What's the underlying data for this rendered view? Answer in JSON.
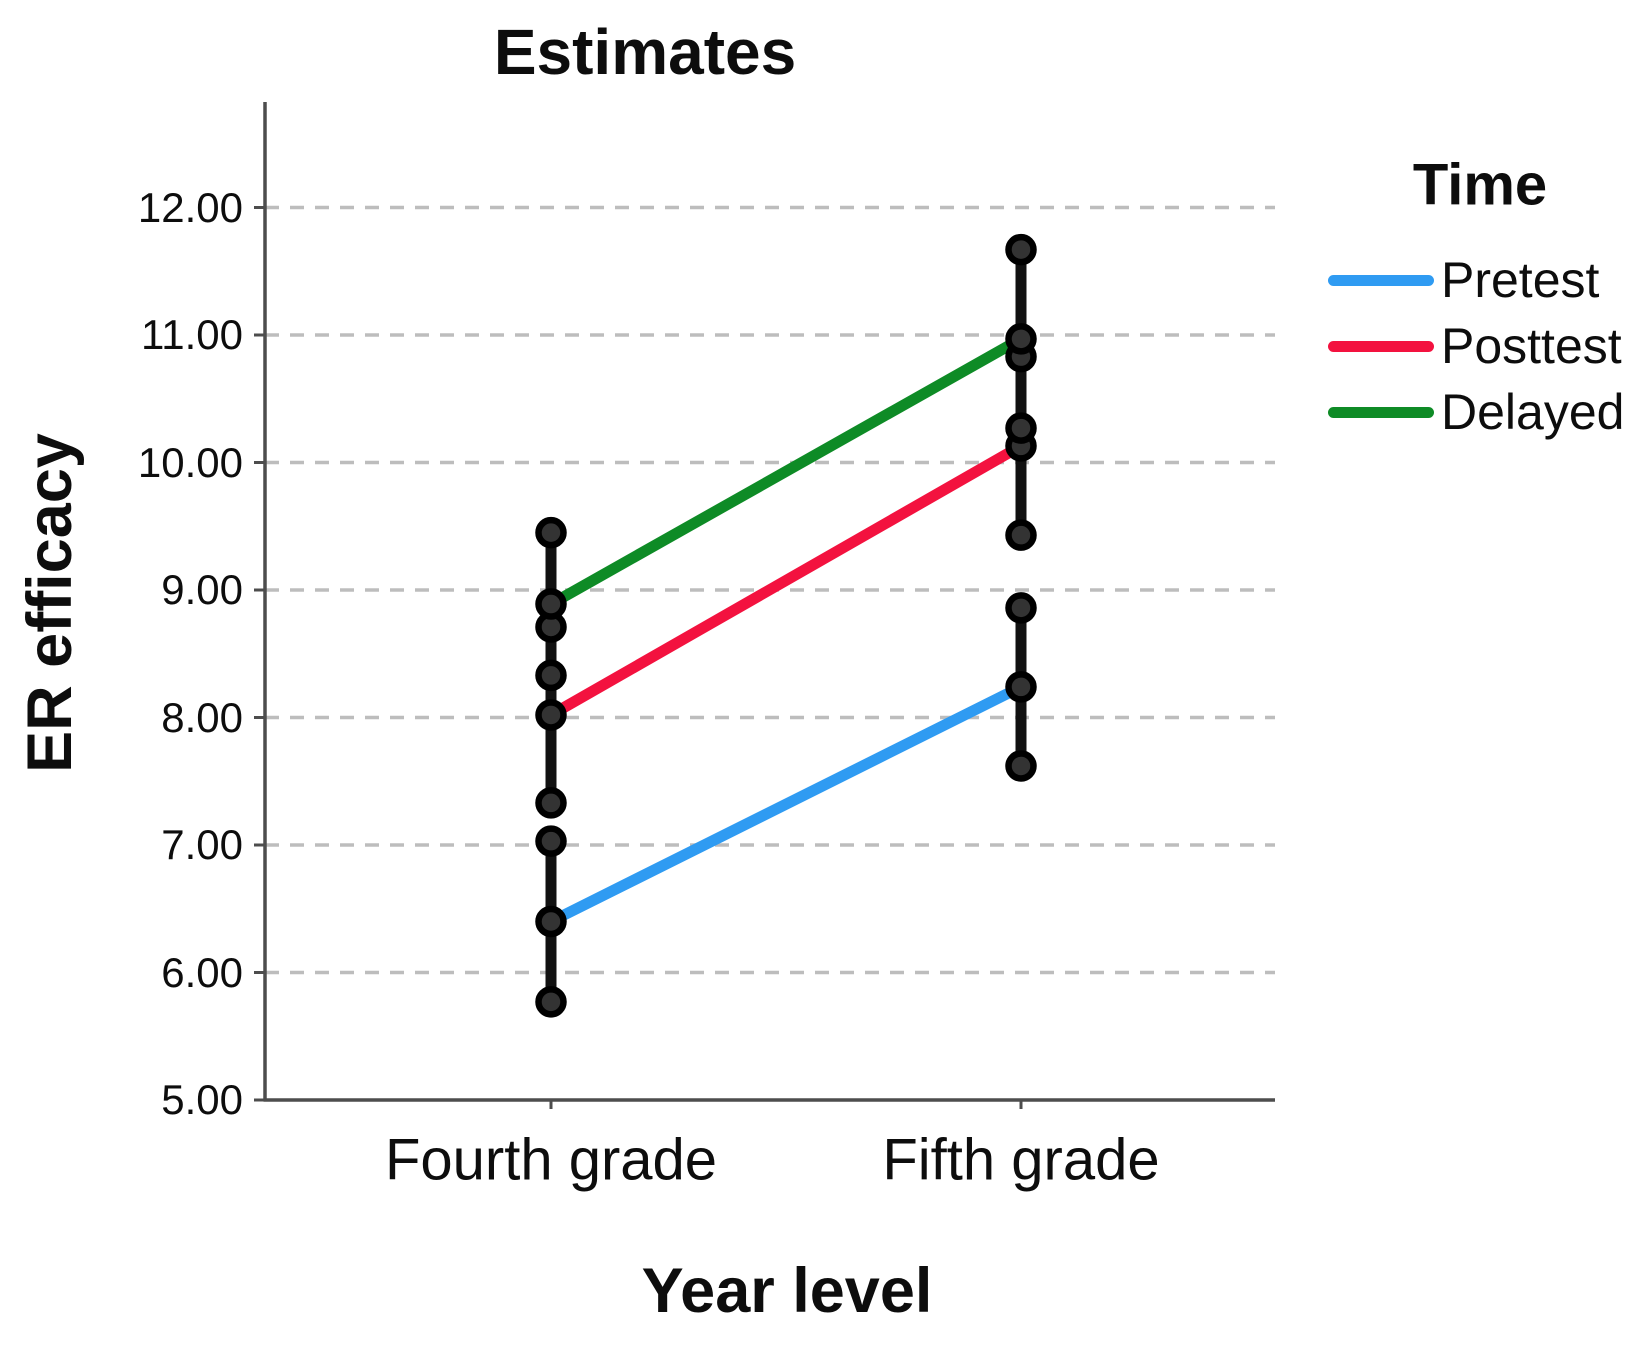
{
  "chart_data": {
    "type": "line",
    "title": "Estimates",
    "xlabel": "Year level",
    "ylabel": "ER efficacy",
    "legend_title": "Time",
    "legend_position": "right",
    "grid": "horizontal-dashed",
    "categories": [
      "Fourth grade",
      "Fifth grade"
    ],
    "y_ticks": [
      5,
      6,
      7,
      8,
      9,
      10,
      11,
      12
    ],
    "y_tick_labels": [
      "5.00",
      "6.00",
      "7.00",
      "8.00",
      "9.00",
      "10.00",
      "11.00",
      "12.00"
    ],
    "ylim": [
      5,
      12.85
    ],
    "series": [
      {
        "name": "Pretest",
        "color": "#2F9BF2",
        "means": [
          6.4,
          8.24
        ],
        "ci_low": [
          5.77,
          7.62
        ],
        "ci_high": [
          7.03,
          8.86
        ]
      },
      {
        "name": "Posttest",
        "color": "#F3123F",
        "means": [
          8.02,
          10.13
        ],
        "ci_low": [
          7.33,
          9.43
        ],
        "ci_high": [
          8.71,
          10.83
        ]
      },
      {
        "name": "Delayed",
        "color": "#0E8B26",
        "means": [
          8.89,
          10.97
        ],
        "ci_low": [
          8.33,
          10.27
        ],
        "ci_high": [
          9.45,
          11.67
        ]
      }
    ],
    "error_bar_color": "#111111",
    "marker_fill": "#333333",
    "marker_stroke": "#000000",
    "gridline_color": "#bdbdbd",
    "axis_color": "#4d4d4d",
    "text_color": "#0d0d0d"
  }
}
